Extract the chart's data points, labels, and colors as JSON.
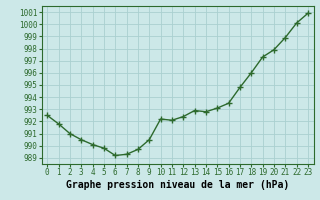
{
  "x": [
    0,
    1,
    2,
    3,
    4,
    5,
    6,
    7,
    8,
    9,
    10,
    11,
    12,
    13,
    14,
    15,
    16,
    17,
    18,
    19,
    20,
    21,
    22,
    23
  ],
  "y": [
    992.5,
    991.8,
    991.0,
    990.5,
    990.1,
    989.8,
    989.2,
    989.3,
    989.7,
    990.5,
    992.2,
    992.1,
    992.4,
    992.9,
    992.8,
    993.1,
    993.5,
    994.8,
    996.0,
    997.3,
    997.9,
    998.9,
    1000.1,
    1000.9
  ],
  "line_color": "#2d6a2d",
  "marker": "+",
  "marker_color": "#2d6a2d",
  "bg_color": "#cce8e8",
  "grid_color": "#aad0d0",
  "xlabel": "Graphe pression niveau de la mer (hPa)",
  "xlabel_fontsize": 7,
  "ylim": [
    988.5,
    1001.5
  ],
  "xlim": [
    -0.5,
    23.5
  ],
  "yticks": [
    989,
    990,
    991,
    992,
    993,
    994,
    995,
    996,
    997,
    998,
    999,
    1000,
    1001
  ],
  "xticks": [
    0,
    1,
    2,
    3,
    4,
    5,
    6,
    7,
    8,
    9,
    10,
    11,
    12,
    13,
    14,
    15,
    16,
    17,
    18,
    19,
    20,
    21,
    22,
    23
  ],
  "tick_fontsize": 5.5,
  "line_width": 1.0,
  "marker_size": 4,
  "spine_color": "#2d6a2d"
}
